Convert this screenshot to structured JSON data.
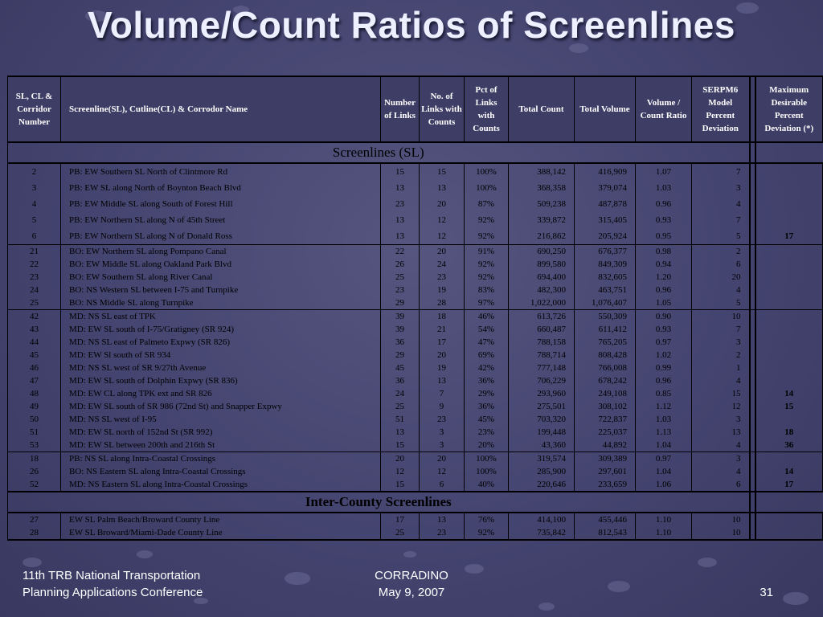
{
  "title": "Volume/Count Ratios of Screenlines",
  "table": {
    "headers": {
      "sl_number": "SL, CL & Corridor Number",
      "name": "Screenline(SL), Cutline(CL) & Corrodor Name",
      "num_links": "Number of Links",
      "counted_links": "No. of Links with Counts",
      "pct_links": "Pct of Links with Counts",
      "total_count": "Total Count",
      "total_volume": "Total Volume",
      "vc_ratio": "Volume / Count Ratio",
      "serpm_dev": "SERPM6 Model Percent Deviation",
      "max_dev": "Maximum Desirable Percent Deviation (*)"
    },
    "section_sl": "Screenlines (SL)",
    "section_ic": "Inter-County Screenlines",
    "groups": [
      {
        "rows": [
          [
            "2",
            "PB: EW Southern SL North of Clintmore Rd",
            "15",
            "15",
            "100%",
            "388,142",
            "416,909",
            "1.07",
            "7",
            ""
          ],
          [
            "3",
            "PB: EW SL along North of Boynton Beach Blvd",
            "13",
            "13",
            "100%",
            "368,358",
            "379,074",
            "1.03",
            "3",
            ""
          ],
          [
            "4",
            "PB: EW Middle SL along South of Forest Hill",
            "23",
            "20",
            "87%",
            "509,238",
            "487,878",
            "0.96",
            "4",
            ""
          ],
          [
            "5",
            "PB: EW Northern SL along N of 45th Street",
            "13",
            "12",
            "92%",
            "339,872",
            "315,405",
            "0.93",
            "7",
            ""
          ],
          [
            "6",
            "PB: EW Northern SL along N of Donald Ross",
            "13",
            "12",
            "92%",
            "216,862",
            "205,924",
            "0.95",
            "5",
            "17"
          ]
        ]
      },
      {
        "rows": [
          [
            "21",
            "BO: EW Northern SL along Pompano Canal",
            "22",
            "20",
            "91%",
            "690,250",
            "676,377",
            "0.98",
            "2",
            ""
          ],
          [
            "22",
            "BO: EW Middle SL along Oakland Park Blvd",
            "26",
            "24",
            "92%",
            "899,580",
            "849,309",
            "0.94",
            "6",
            ""
          ],
          [
            "23",
            "BO: EW Southern SL along River Canal",
            "25",
            "23",
            "92%",
            "694,400",
            "832,605",
            "1.20",
            "20",
            ""
          ],
          [
            "24",
            "BO: NS Western SL between I-75 and Turnpike",
            "23",
            "19",
            "83%",
            "482,300",
            "463,751",
            "0.96",
            "4",
            ""
          ],
          [
            "25",
            "BO: NS Middle SL along Turnpike",
            "29",
            "28",
            "97%",
            "1,022,000",
            "1,076,407",
            "1.05",
            "5",
            ""
          ]
        ]
      },
      {
        "rows": [
          [
            "42",
            "MD: NS SL east of TPK",
            "39",
            "18",
            "46%",
            "613,726",
            "550,309",
            "0.90",
            "10",
            ""
          ],
          [
            "43",
            "MD: EW SL south of I-75/Gratigney (SR 924)",
            "39",
            "21",
            "54%",
            "660,487",
            "611,412",
            "0.93",
            "7",
            ""
          ],
          [
            "44",
            "MD: NS SL east of Palmeto Expwy (SR 826)",
            "36",
            "17",
            "47%",
            "788,158",
            "765,205",
            "0.97",
            "3",
            ""
          ],
          [
            "45",
            "MD: EW Sl south of SR 934",
            "29",
            "20",
            "69%",
            "788,714",
            "808,428",
            "1.02",
            "2",
            ""
          ],
          [
            "46",
            "MD: NS SL west of SR 9/27th Avenue",
            "45",
            "19",
            "42%",
            "777,148",
            "766,008",
            "0.99",
            "1",
            ""
          ],
          [
            "47",
            "MD: EW SL south of Dolphin Expwy (SR 836)",
            "36",
            "13",
            "36%",
            "706,229",
            "678,242",
            "0.96",
            "4",
            ""
          ],
          [
            "48",
            "MD: EW CL along TPK ext and SR 826",
            "24",
            "7",
            "29%",
            "293,960",
            "249,108",
            "0.85",
            "15",
            "14"
          ],
          [
            "49",
            "MD: EW SL south of SR 986 (72nd St) and Snapper Expwy",
            "25",
            "9",
            "36%",
            "275,501",
            "308,102",
            "1.12",
            "12",
            "15"
          ],
          [
            "50",
            "MD: NS SL west of I-95",
            "51",
            "23",
            "45%",
            "703,320",
            "722,837",
            "1.03",
            "3",
            ""
          ],
          [
            "51",
            "MD: EW SL north of 152nd St (SR 992)",
            "13",
            "3",
            "23%",
            "199,448",
            "225,037",
            "1.13",
            "13",
            "18"
          ],
          [
            "53",
            "MD: EW SL between 200th and 216th St",
            "15",
            "3",
            "20%",
            "43,360",
            "44,892",
            "1.04",
            "4",
            "36"
          ]
        ]
      },
      {
        "rows": [
          [
            "18",
            "PB: NS SL along Intra-Coastal Crossings",
            "20",
            "20",
            "100%",
            "319,574",
            "309,389",
            "0.97",
            "3",
            ""
          ],
          [
            "26",
            "BO: NS Eastern SL along Intra-Coastal Crossings",
            "12",
            "12",
            "100%",
            "285,900",
            "297,601",
            "1.04",
            "4",
            "14"
          ],
          [
            "52",
            "MD: NS Eastern SL along Intra-Coastal Crossings",
            "15",
            "6",
            "40%",
            "220,646",
            "233,659",
            "1.06",
            "6",
            "17"
          ]
        ]
      }
    ],
    "ic_rows": [
      [
        "27",
        "EW  SL Palm Beach/Broward County Line",
        "17",
        "13",
        "76%",
        "414,100",
        "455,446",
        "1.10",
        "10",
        ""
      ],
      [
        "28",
        "EW  SL Broward/Miami-Dade County Line",
        "25",
        "23",
        "92%",
        "735,842",
        "812,543",
        "1.10",
        "10",
        ""
      ]
    ]
  },
  "footer": {
    "left_line1": "11th TRB National Transportation",
    "left_line2": "Planning Applications Conference",
    "center_line1": "CORRADINO",
    "center_line2": "May 9, 2007",
    "page": "31"
  }
}
